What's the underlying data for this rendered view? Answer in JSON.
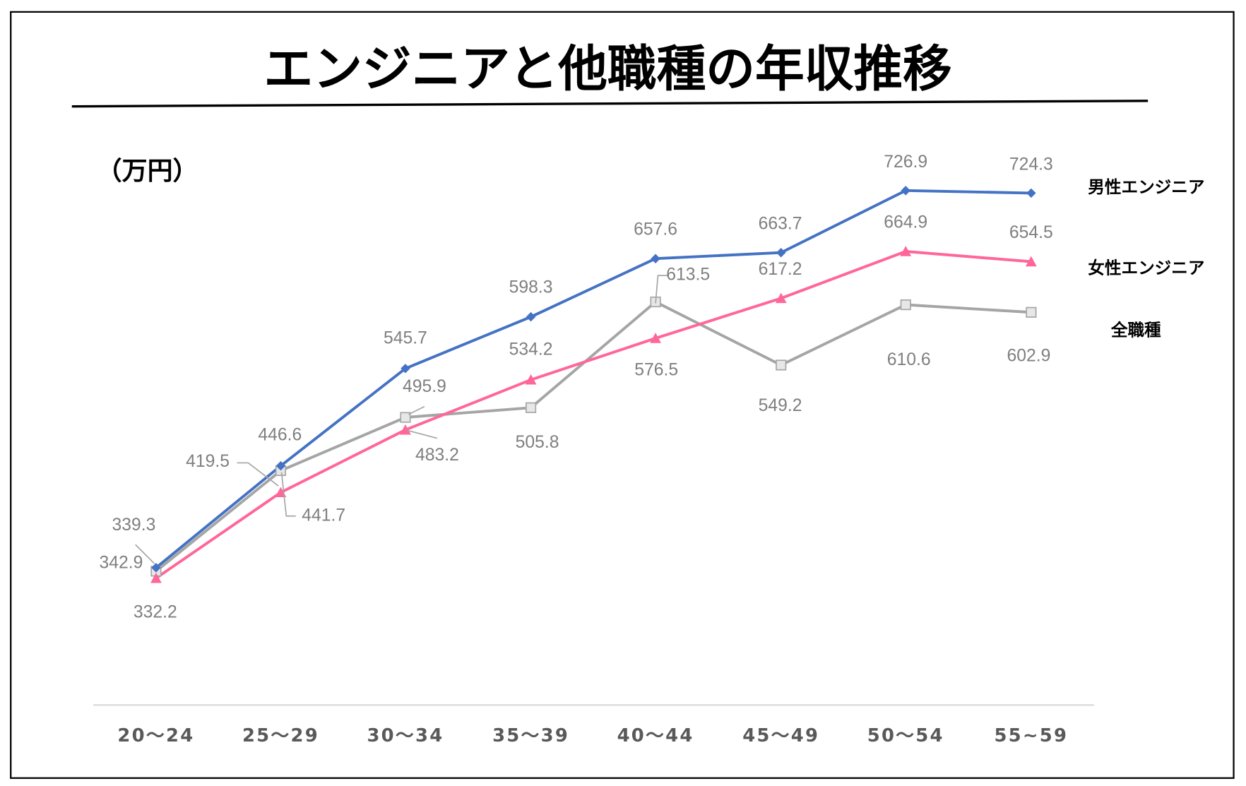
{
  "chart_data": {
    "type": "line",
    "title": "エンジニアと他職種の年収推移",
    "ylabel": "（万円）",
    "xlabel": "",
    "categories": [
      "20～24",
      "25～29",
      "30～34",
      "35～39",
      "40～44",
      "45～49",
      "50～54",
      "55~59"
    ],
    "ylim": [
      200,
      780
    ],
    "grid": false,
    "legend": "right",
    "series": [
      {
        "name": "男性エンジニア",
        "color": "#4472c4",
        "marker": "diamond",
        "values": [
          342.9,
          446.6,
          545.7,
          598.3,
          657.6,
          663.7,
          726.9,
          724.3
        ]
      },
      {
        "name": "女性エンジニア",
        "color": "#ff6699",
        "marker": "triangle",
        "values": [
          332.2,
          419.5,
          483.2,
          534.2,
          576.5,
          617.2,
          664.9,
          654.5
        ]
      },
      {
        "name": "全職種",
        "color": "#a5a5a5",
        "marker": "square",
        "values": [
          339.3,
          441.7,
          495.9,
          505.8,
          613.5,
          549.2,
          610.6,
          602.9
        ]
      }
    ]
  }
}
